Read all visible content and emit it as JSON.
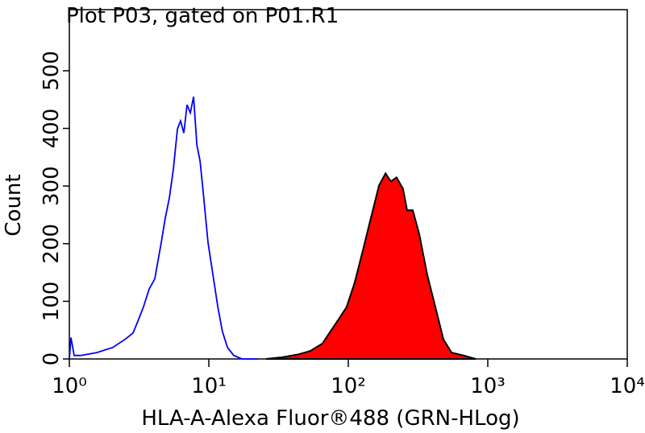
{
  "chart_data": {
    "type": "line",
    "title": "Plot P03, gated on P01.R1",
    "x_label": "HLA-A-Alexa Fluor®488 (GRN-HLog)",
    "y_label": "Count",
    "x_log": true,
    "xlim": [
      1,
      10000
    ],
    "xticks": [
      {
        "value": 1,
        "label": "10⁰"
      },
      {
        "value": 10,
        "label": "10¹"
      },
      {
        "value": 100,
        "label": "10²"
      },
      {
        "value": 1000,
        "label": "10³"
      },
      {
        "value": 10000,
        "label": "10⁴"
      }
    ],
    "ylim": [
      0,
      606
    ],
    "yticks": [
      0,
      100,
      200,
      300,
      400,
      500
    ],
    "series": [
      {
        "color": "#0000ff",
        "filled": false,
        "x": [
          1,
          1.027,
          1.083,
          1.205,
          1.572,
          2.05,
          2.506,
          2.86,
          3.14,
          3.4,
          3.73,
          4.1,
          4.56,
          4.87,
          5.21,
          5.57,
          5.96,
          6.27,
          6.62,
          6.98,
          7.37,
          7.78,
          8.21,
          8.66,
          9.14,
          9.87,
          10.7,
          11.6,
          12.5,
          13.6,
          15.1,
          17.3,
          22.5
        ],
        "values": [
          0,
          37,
          6,
          6,
          11,
          20,
          34,
          45,
          69,
          90,
          121,
          139,
          202,
          244,
          279,
          329,
          399,
          413,
          392,
          441,
          427,
          455,
          371,
          343,
          287,
          202,
          146,
          90,
          48,
          20,
          6,
          0,
          0
        ]
      },
      {
        "color": "#ff0000",
        "filled": true,
        "x": [
          25.7,
          33.6,
          43.8,
          53.5,
          65.3,
          74.6,
          85.3,
          97.3,
          111,
          127,
          145,
          166,
          185,
          202,
          222,
          247,
          264,
          290,
          323,
          368,
          421,
          481,
          550,
          671,
          819
        ],
        "values": [
          0,
          3,
          8,
          14,
          27,
          48,
          69,
          90,
          132,
          188,
          244,
          301,
          322,
          308,
          315,
          295,
          258,
          258,
          216,
          146,
          90,
          34,
          11,
          6,
          0
        ]
      }
    ]
  }
}
